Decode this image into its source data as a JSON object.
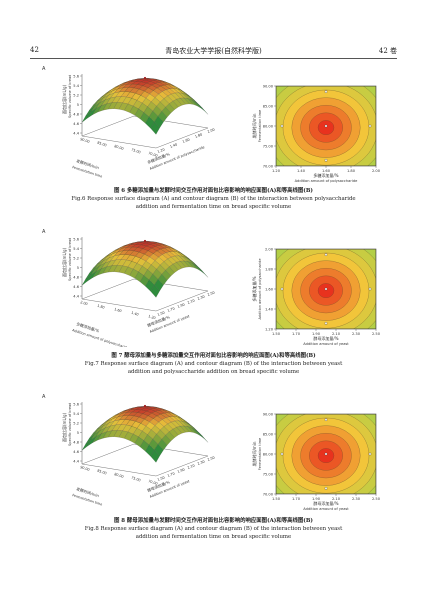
{
  "header": {
    "page_number_left": "42",
    "journal": "青岛农业大学学报(自然科学版)",
    "volume": "42 卷"
  },
  "figures": [
    {
      "id": "fig6",
      "caption_zh": "图 6   多糖添加量与发酵时间交互作用对面包比容影响的响应面图(A)和等高线图(B)",
      "caption_en_1": "Fig.6   Response surface diagram (A) and contour diagram (B) of the interaction between polysaccharide",
      "caption_en_2": "addition and fermentation time on bread specific volume",
      "surface": {
        "panel_label": "A",
        "zlabel_zh": "面包比容(mL/g)",
        "zlabel_en": "Specific volume of bread",
        "zticks": [
          "5.6",
          "5.4",
          "5.2",
          "5",
          "4.8",
          "4.6",
          "4.4"
        ],
        "axis1_zh": "发酵时间/min",
        "axis1_en": "Fermentation time",
        "axis1_ticks": [
          "90.00",
          "85.00",
          "80.00",
          "75.00",
          "70.00"
        ],
        "axis2_zh": "多糖添加量/%",
        "axis2_en": "Addition amount of polysaccharide",
        "axis2_ticks": [
          "1.20",
          "1.40",
          "1.60",
          "1.80",
          "2.00"
        ]
      },
      "contour": {
        "panel_label": "B",
        "title_zh": "面包比容(mL/g)",
        "title_en": "Specific volume of bread",
        "ylabel_zh": "发酵时间/min",
        "ylabel_en": "Fermentation time",
        "yticks": [
          "90.00",
          "85.00",
          "80.00",
          "75.00",
          "70.00"
        ],
        "xlabel_zh": "多糖添加量/%",
        "xlabel_en": "Addition amount of polysaccharide",
        "xticks": [
          "1.20",
          "1.40",
          "1.60",
          "1.80",
          "2.00"
        ]
      }
    },
    {
      "id": "fig7",
      "caption_zh": "图 7   酵母添加量与多糖添加量交互作用对面包比容影响的响应面图(A)和等高线图(B)",
      "caption_en_1": "Fig.7   Response surface diagram (A) and contour diagram (B) of the interaction between yeast",
      "caption_en_2": "addition and polysaccharide addition on bread specific volume",
      "surface": {
        "panel_label": "A",
        "zlabel_zh": "面包比容(mL/g)",
        "zlabel_en": "Specific volume of bread",
        "zticks": [
          "5.6",
          "5.4",
          "5.2",
          "5",
          "4.8",
          "4.6",
          "4.4"
        ],
        "axis1_zh": "多糖添加量/%",
        "axis1_en": "Addition amount of polysaccharide",
        "axis1_ticks": [
          "2.00",
          "1.80",
          "1.60",
          "1.40",
          "1.20"
        ],
        "axis2_zh": "酵母添加量/%",
        "axis2_en": "Addition amount of yeast",
        "axis2_ticks": [
          "1.50",
          "1.70",
          "1.90",
          "2.10",
          "2.30",
          "2.50"
        ]
      },
      "contour": {
        "panel_label": "B",
        "title_zh": "面包比容(mL/g)",
        "title_en": "Specific volume of bread",
        "ylabel_zh": "多糖添加量/%",
        "ylabel_en": "Addition amount of polysaccharide",
        "yticks": [
          "2.00",
          "1.80",
          "1.60",
          "1.40",
          "1.20"
        ],
        "xlabel_zh": "酵母添加量/%",
        "xlabel_en": "Addition amount of yeast",
        "xticks": [
          "1.50",
          "1.70",
          "1.90",
          "2.10",
          "2.30",
          "2.50"
        ]
      }
    },
    {
      "id": "fig8",
      "caption_zh": "图 8   酵母添加量与发酵时间交互作用对面包比容影响的响应面图(A)和等高线图(B)",
      "caption_en_1": "Fig.8   Response surface diagram (A) and contour diagram (B) of the interaction between yeast",
      "caption_en_2": "addition and fermentation time on bread specific volume",
      "surface": {
        "panel_label": "A",
        "zlabel_zh": "面包比容(mL/g)",
        "zlabel_en": "Specific volume of bread",
        "zticks": [
          "5.6",
          "5.4",
          "5.2",
          "5",
          "4.8",
          "4.6",
          "4.4"
        ],
        "axis1_zh": "发酵时间/min",
        "axis1_en": "Fermentation time",
        "axis1_ticks": [
          "90.00",
          "85.00",
          "80.00",
          "75.00",
          "70.00"
        ],
        "axis2_zh": "酵母添加量/%",
        "axis2_en": "Addition amount of yeast",
        "axis2_ticks": [
          "1.50",
          "1.70",
          "1.90",
          "2.10",
          "2.30",
          "2.50"
        ]
      },
      "contour": {
        "panel_label": "B",
        "title_zh": "面包比容(mL/g)",
        "title_en": "Specific volume of bread",
        "ylabel_zh": "发酵时间/min",
        "ylabel_en": "Fermentation time",
        "yticks": [
          "90.00",
          "85.00",
          "80.00",
          "75.00",
          "70.00"
        ],
        "xlabel_zh": "酵母添加量/%",
        "xlabel_en": "Addition amount of yeast",
        "xticks": [
          "1.50",
          "1.70",
          "1.90",
          "2.10",
          "2.30",
          "2.50"
        ]
      }
    }
  ],
  "colors": {
    "surface_high": "#c0302a",
    "surface_mid": "#e8c23a",
    "surface_low": "#2e8b3c",
    "contour_center": "#e8321e",
    "contour_edge": "#9ed24a"
  }
}
